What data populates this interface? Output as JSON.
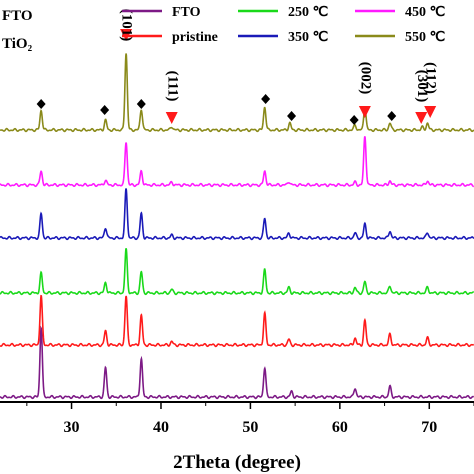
{
  "chart_data": {
    "type": "line",
    "xlabel": "2Theta (degree)",
    "xlim": [
      22,
      75
    ],
    "xticks": [
      30,
      40,
      50,
      60,
      70
    ],
    "xtick_labels": [
      "30",
      "40",
      "50",
      "60",
      "70"
    ],
    "ylabel": "",
    "series": [
      {
        "name": "FTO",
        "color": "#7d1a86",
        "order": 0,
        "peaks": [
          [
            26.6,
            1.0
          ],
          [
            33.8,
            0.42
          ],
          [
            37.8,
            0.55
          ],
          [
            51.6,
            0.42
          ],
          [
            54.6,
            0.08
          ],
          [
            61.7,
            0.13
          ],
          [
            65.6,
            0.15
          ]
        ]
      },
      {
        "name": "pristine",
        "color": "#ff1a1a",
        "order": 1,
        "peaks": [
          [
            26.6,
            0.7
          ],
          [
            33.8,
            0.2
          ],
          [
            36.1,
            0.7
          ],
          [
            37.8,
            0.42
          ],
          [
            41.2,
            0.05
          ],
          [
            51.6,
            0.45
          ],
          [
            54.3,
            0.08
          ],
          [
            61.7,
            0.1
          ],
          [
            62.8,
            0.35
          ],
          [
            65.6,
            0.15
          ],
          [
            69.8,
            0.1
          ]
        ]
      },
      {
        "name": "250 ℃",
        "color": "#1ad91a",
        "order": 2,
        "peaks": [
          [
            26.6,
            0.28
          ],
          [
            33.8,
            0.15
          ],
          [
            36.1,
            0.62
          ],
          [
            37.8,
            0.3
          ],
          [
            41.2,
            0.05
          ],
          [
            51.6,
            0.33
          ],
          [
            54.3,
            0.08
          ],
          [
            61.7,
            0.08
          ],
          [
            62.8,
            0.16
          ],
          [
            65.6,
            0.1
          ],
          [
            69.8,
            0.08
          ]
        ]
      },
      {
        "name": "350 ℃",
        "color": "#1a1ab8",
        "order": 3,
        "peaks": [
          [
            26.6,
            0.35
          ],
          [
            33.8,
            0.15
          ],
          [
            36.1,
            0.7
          ],
          [
            37.8,
            0.35
          ],
          [
            41.2,
            0.04
          ],
          [
            51.6,
            0.28
          ],
          [
            54.3,
            0.07
          ],
          [
            61.7,
            0.07
          ],
          [
            62.8,
            0.2
          ],
          [
            65.6,
            0.1
          ],
          [
            69.8,
            0.08
          ]
        ]
      },
      {
        "name": "450 ℃",
        "color": "#ff1aff",
        "order": 4,
        "peaks": [
          [
            26.6,
            0.2
          ],
          [
            33.8,
            0.07
          ],
          [
            36.1,
            0.62
          ],
          [
            37.8,
            0.2
          ],
          [
            41.2,
            0.04
          ],
          [
            51.6,
            0.2
          ],
          [
            54.3,
            0.05
          ],
          [
            61.7,
            0.04
          ],
          [
            62.8,
            0.7
          ],
          [
            65.6,
            0.06
          ],
          [
            69.8,
            0.06
          ]
        ]
      },
      {
        "name": "550 ℃",
        "color": "#8a8a1a",
        "order": 5,
        "peaks": [
          [
            26.6,
            0.28
          ],
          [
            33.8,
            0.14
          ],
          [
            36.1,
            1.1
          ],
          [
            37.8,
            0.3
          ],
          [
            41.2,
            0.05
          ],
          [
            51.6,
            0.33
          ],
          [
            54.4,
            0.1
          ],
          [
            61.7,
            0.07
          ],
          [
            62.8,
            0.33
          ],
          [
            65.6,
            0.1
          ],
          [
            69.2,
            0.04
          ],
          [
            69.8,
            0.1
          ]
        ]
      }
    ],
    "legend_label_left": [
      "FTO",
      "TiO₂"
    ],
    "legend_columns": [
      [
        "FTO",
        "pristine"
      ],
      [
        "250 ℃",
        "350 ℃"
      ],
      [
        "450 ℃",
        "550 ℃"
      ]
    ],
    "markers": {
      "diamond_x": [
        26.6,
        33.7,
        37.8,
        51.7,
        54.6,
        61.6,
        65.8
      ],
      "triangles": [
        {
          "x": 36.1,
          "label": "(101)"
        },
        {
          "x": 41.2,
          "label": "(111)"
        },
        {
          "x": 62.8,
          "label": "(002)"
        },
        {
          "x": 69.1,
          "label": "(301)"
        },
        {
          "x": 70.1,
          "label": "(112)"
        }
      ]
    }
  }
}
